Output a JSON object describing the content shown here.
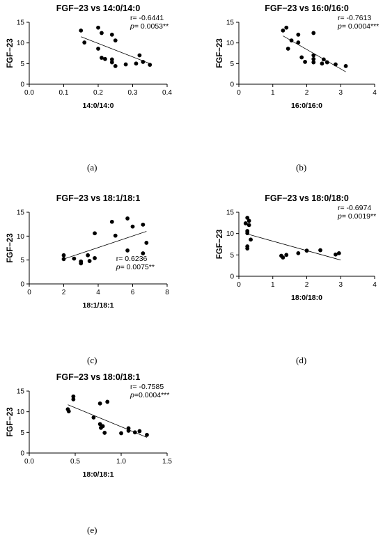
{
  "chart_data": [
    {
      "panel": "a",
      "type": "scatter",
      "title": "FGF−23 vs 14:0/14:0",
      "xlabel": "14:0/14:0",
      "ylabel": "FGF−23",
      "xlim": [
        0.0,
        0.4
      ],
      "ylim": [
        0,
        15
      ],
      "xticks": [
        "0.0",
        "0.1",
        "0.2",
        "0.3",
        "0.4"
      ],
      "yticks": [
        "0",
        "5",
        "10",
        "15"
      ],
      "r": "r= -0.6441",
      "p_label": "p",
      "p": "= 0.0053**",
      "stat_pos": "top-right",
      "points": [
        [
          0.15,
          13
        ],
        [
          0.16,
          10.1
        ],
        [
          0.2,
          13.7
        ],
        [
          0.21,
          12.4
        ],
        [
          0.24,
          12
        ],
        [
          0.25,
          10.6
        ],
        [
          0.2,
          8.6
        ],
        [
          0.21,
          6.4
        ],
        [
          0.22,
          6.1
        ],
        [
          0.24,
          6.0
        ],
        [
          0.24,
          5.3
        ],
        [
          0.25,
          4.4
        ],
        [
          0.28,
          4.8
        ],
        [
          0.31,
          5.0
        ],
        [
          0.32,
          7.0
        ],
        [
          0.33,
          5.4
        ],
        [
          0.35,
          4.7
        ]
      ],
      "trend": [
        [
          0.15,
          11.5
        ],
        [
          0.35,
          5.0
        ]
      ]
    },
    {
      "panel": "b",
      "type": "scatter",
      "title": "FGF−23 vs 16:0/16:0",
      "xlabel": "16:0/16:0",
      "ylabel": "FGF−23",
      "xlim": [
        0,
        4
      ],
      "ylim": [
        0,
        15
      ],
      "xticks": [
        "0",
        "1",
        "2",
        "3",
        "4"
      ],
      "yticks": [
        "0",
        "5",
        "10",
        "15"
      ],
      "r": "r= -0.7613",
      "p_label": "p",
      "p": "= 0.0004***",
      "stat_pos": "top-right",
      "points": [
        [
          1.3,
          13
        ],
        [
          1.4,
          13.7
        ],
        [
          1.55,
          10.6
        ],
        [
          1.45,
          8.6
        ],
        [
          1.75,
          10.1
        ],
        [
          1.75,
          12
        ],
        [
          2.2,
          12.4
        ],
        [
          1.85,
          6.5
        ],
        [
          1.95,
          5.4
        ],
        [
          2.2,
          7.0
        ],
        [
          2.2,
          6.1
        ],
        [
          2.2,
          5.3
        ],
        [
          2.45,
          5.0
        ],
        [
          2.5,
          6.0
        ],
        [
          2.6,
          5.3
        ],
        [
          2.85,
          4.8
        ],
        [
          3.15,
          4.4
        ]
      ],
      "trend": [
        [
          1.3,
          11.7
        ],
        [
          3.15,
          3.0
        ]
      ]
    },
    {
      "panel": "c",
      "type": "scatter",
      "title": "FGF−23 vs 18:1/18:1",
      "xlabel": "18:1/18:1",
      "ylabel": "FGF−23",
      "xlim": [
        0,
        8
      ],
      "ylim": [
        0,
        15
      ],
      "xticks": [
        "0",
        "2",
        "4",
        "6",
        "8"
      ],
      "yticks": [
        "0",
        "5",
        "10",
        "15"
      ],
      "r": "r= 0.6236",
      "p_label": "p",
      "p": "= 0.0075**",
      "stat_pos": "bottom-right",
      "points": [
        [
          2.0,
          6.0
        ],
        [
          2.0,
          5.2
        ],
        [
          2.6,
          5.3
        ],
        [
          3.0,
          4.7
        ],
        [
          3.0,
          4.3
        ],
        [
          3.4,
          6.0
        ],
        [
          3.5,
          4.8
        ],
        [
          3.8,
          5.4
        ],
        [
          3.8,
          10.6
        ],
        [
          4.8,
          13
        ],
        [
          5.0,
          10.1
        ],
        [
          5.7,
          13.7
        ],
        [
          5.7,
          7.0
        ],
        [
          6.0,
          12
        ],
        [
          6.6,
          12.4
        ],
        [
          6.6,
          6.4
        ],
        [
          6.8,
          8.6
        ]
      ],
      "trend": [
        [
          2.0,
          5.2
        ],
        [
          6.8,
          11.0
        ]
      ]
    },
    {
      "panel": "d",
      "type": "scatter",
      "title": "FGF−23 vs 18:0/18:0",
      "xlabel": "18:0/18:0",
      "ylabel": "FGF−23",
      "xlim": [
        0,
        4
      ],
      "ylim": [
        0,
        15
      ],
      "xticks": [
        "0",
        "1",
        "2",
        "3",
        "4"
      ],
      "yticks": [
        "0",
        "5",
        "10",
        "15"
      ],
      "r": "r= -0.6974",
      "p_label": "p",
      "p": "= 0.0019**",
      "stat_pos": "top-right",
      "points": [
        [
          0.2,
          12.4
        ],
        [
          0.25,
          13.7
        ],
        [
          0.3,
          13
        ],
        [
          0.3,
          12
        ],
        [
          0.25,
          10.6
        ],
        [
          0.25,
          10.1
        ],
        [
          0.35,
          8.6
        ],
        [
          0.25,
          7.0
        ],
        [
          0.25,
          6.5
        ],
        [
          1.25,
          4.8
        ],
        [
          1.3,
          4.4
        ],
        [
          1.4,
          5.0
        ],
        [
          1.75,
          5.4
        ],
        [
          2.0,
          6.0
        ],
        [
          2.4,
          6.1
        ],
        [
          2.85,
          5.1
        ],
        [
          2.95,
          5.4
        ]
      ],
      "trend": [
        [
          0.2,
          10.0
        ],
        [
          3.0,
          3.8
        ]
      ]
    },
    {
      "panel": "e",
      "type": "scatter",
      "title": "FGF−23 vs 18:0/18:1",
      "xlabel": "18:0/18:1",
      "ylabel": "FGF−23",
      "xlim": [
        0.0,
        1.5
      ],
      "ylim": [
        0,
        15
      ],
      "xticks": [
        "0.0",
        "0.5",
        "1.0",
        "1.5"
      ],
      "yticks": [
        "0",
        "5",
        "10",
        "15"
      ],
      "r": "r= -0.7585",
      "p_label": "p",
      "p": "=0.0004***",
      "stat_pos": "top-right",
      "points": [
        [
          0.42,
          10.6
        ],
        [
          0.43,
          10.1
        ],
        [
          0.48,
          13.7
        ],
        [
          0.48,
          13
        ],
        [
          0.7,
          8.6
        ],
        [
          0.77,
          12
        ],
        [
          0.77,
          7.0
        ],
        [
          0.78,
          6.1
        ],
        [
          0.8,
          6.5
        ],
        [
          0.82,
          4.9
        ],
        [
          0.85,
          12.4
        ],
        [
          1.0,
          4.8
        ],
        [
          1.08,
          6.0
        ],
        [
          1.08,
          5.4
        ],
        [
          1.15,
          5.0
        ],
        [
          1.2,
          5.3
        ],
        [
          1.28,
          4.4
        ]
      ],
      "trend": [
        [
          0.42,
          11.7
        ],
        [
          1.28,
          3.8
        ]
      ]
    }
  ],
  "captions": [
    "(a)",
    "(b)",
    "(c)",
    "(d)",
    "(e)"
  ]
}
